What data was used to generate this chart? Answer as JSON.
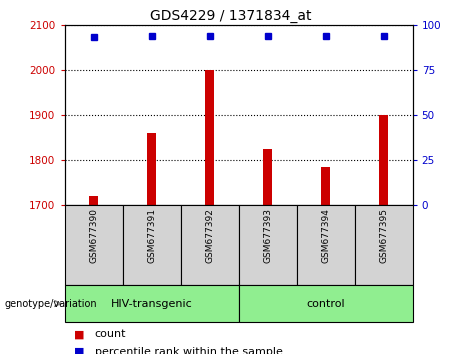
{
  "title": "GDS4229 / 1371834_at",
  "samples": [
    "GSM677390",
    "GSM677391",
    "GSM677392",
    "GSM677393",
    "GSM677394",
    "GSM677395"
  ],
  "bar_values": [
    1720,
    1860,
    2000,
    1825,
    1785,
    1900
  ],
  "percentile_values": [
    93,
    94,
    94,
    94,
    94,
    94
  ],
  "bar_color": "#cc0000",
  "dot_color": "#0000cc",
  "ylim_left": [
    1700,
    2100
  ],
  "ylim_right": [
    0,
    100
  ],
  "yticks_left": [
    1700,
    1800,
    1900,
    2000,
    2100
  ],
  "yticks_right": [
    0,
    25,
    50,
    75,
    100
  ],
  "group_labels": [
    "HIV-transgenic",
    "control"
  ],
  "group_ranges": [
    [
      0,
      3
    ],
    [
      3,
      6
    ]
  ],
  "group_color": "#90ee90",
  "sample_box_color": "#d3d3d3",
  "xlabel_color": "#cc0000",
  "ylabel_right_color": "#0000cc",
  "bar_width": 0.15,
  "legend_count_label": "count",
  "legend_percentile_label": "percentile rank within the sample",
  "genotype_label": "genotype/variation"
}
